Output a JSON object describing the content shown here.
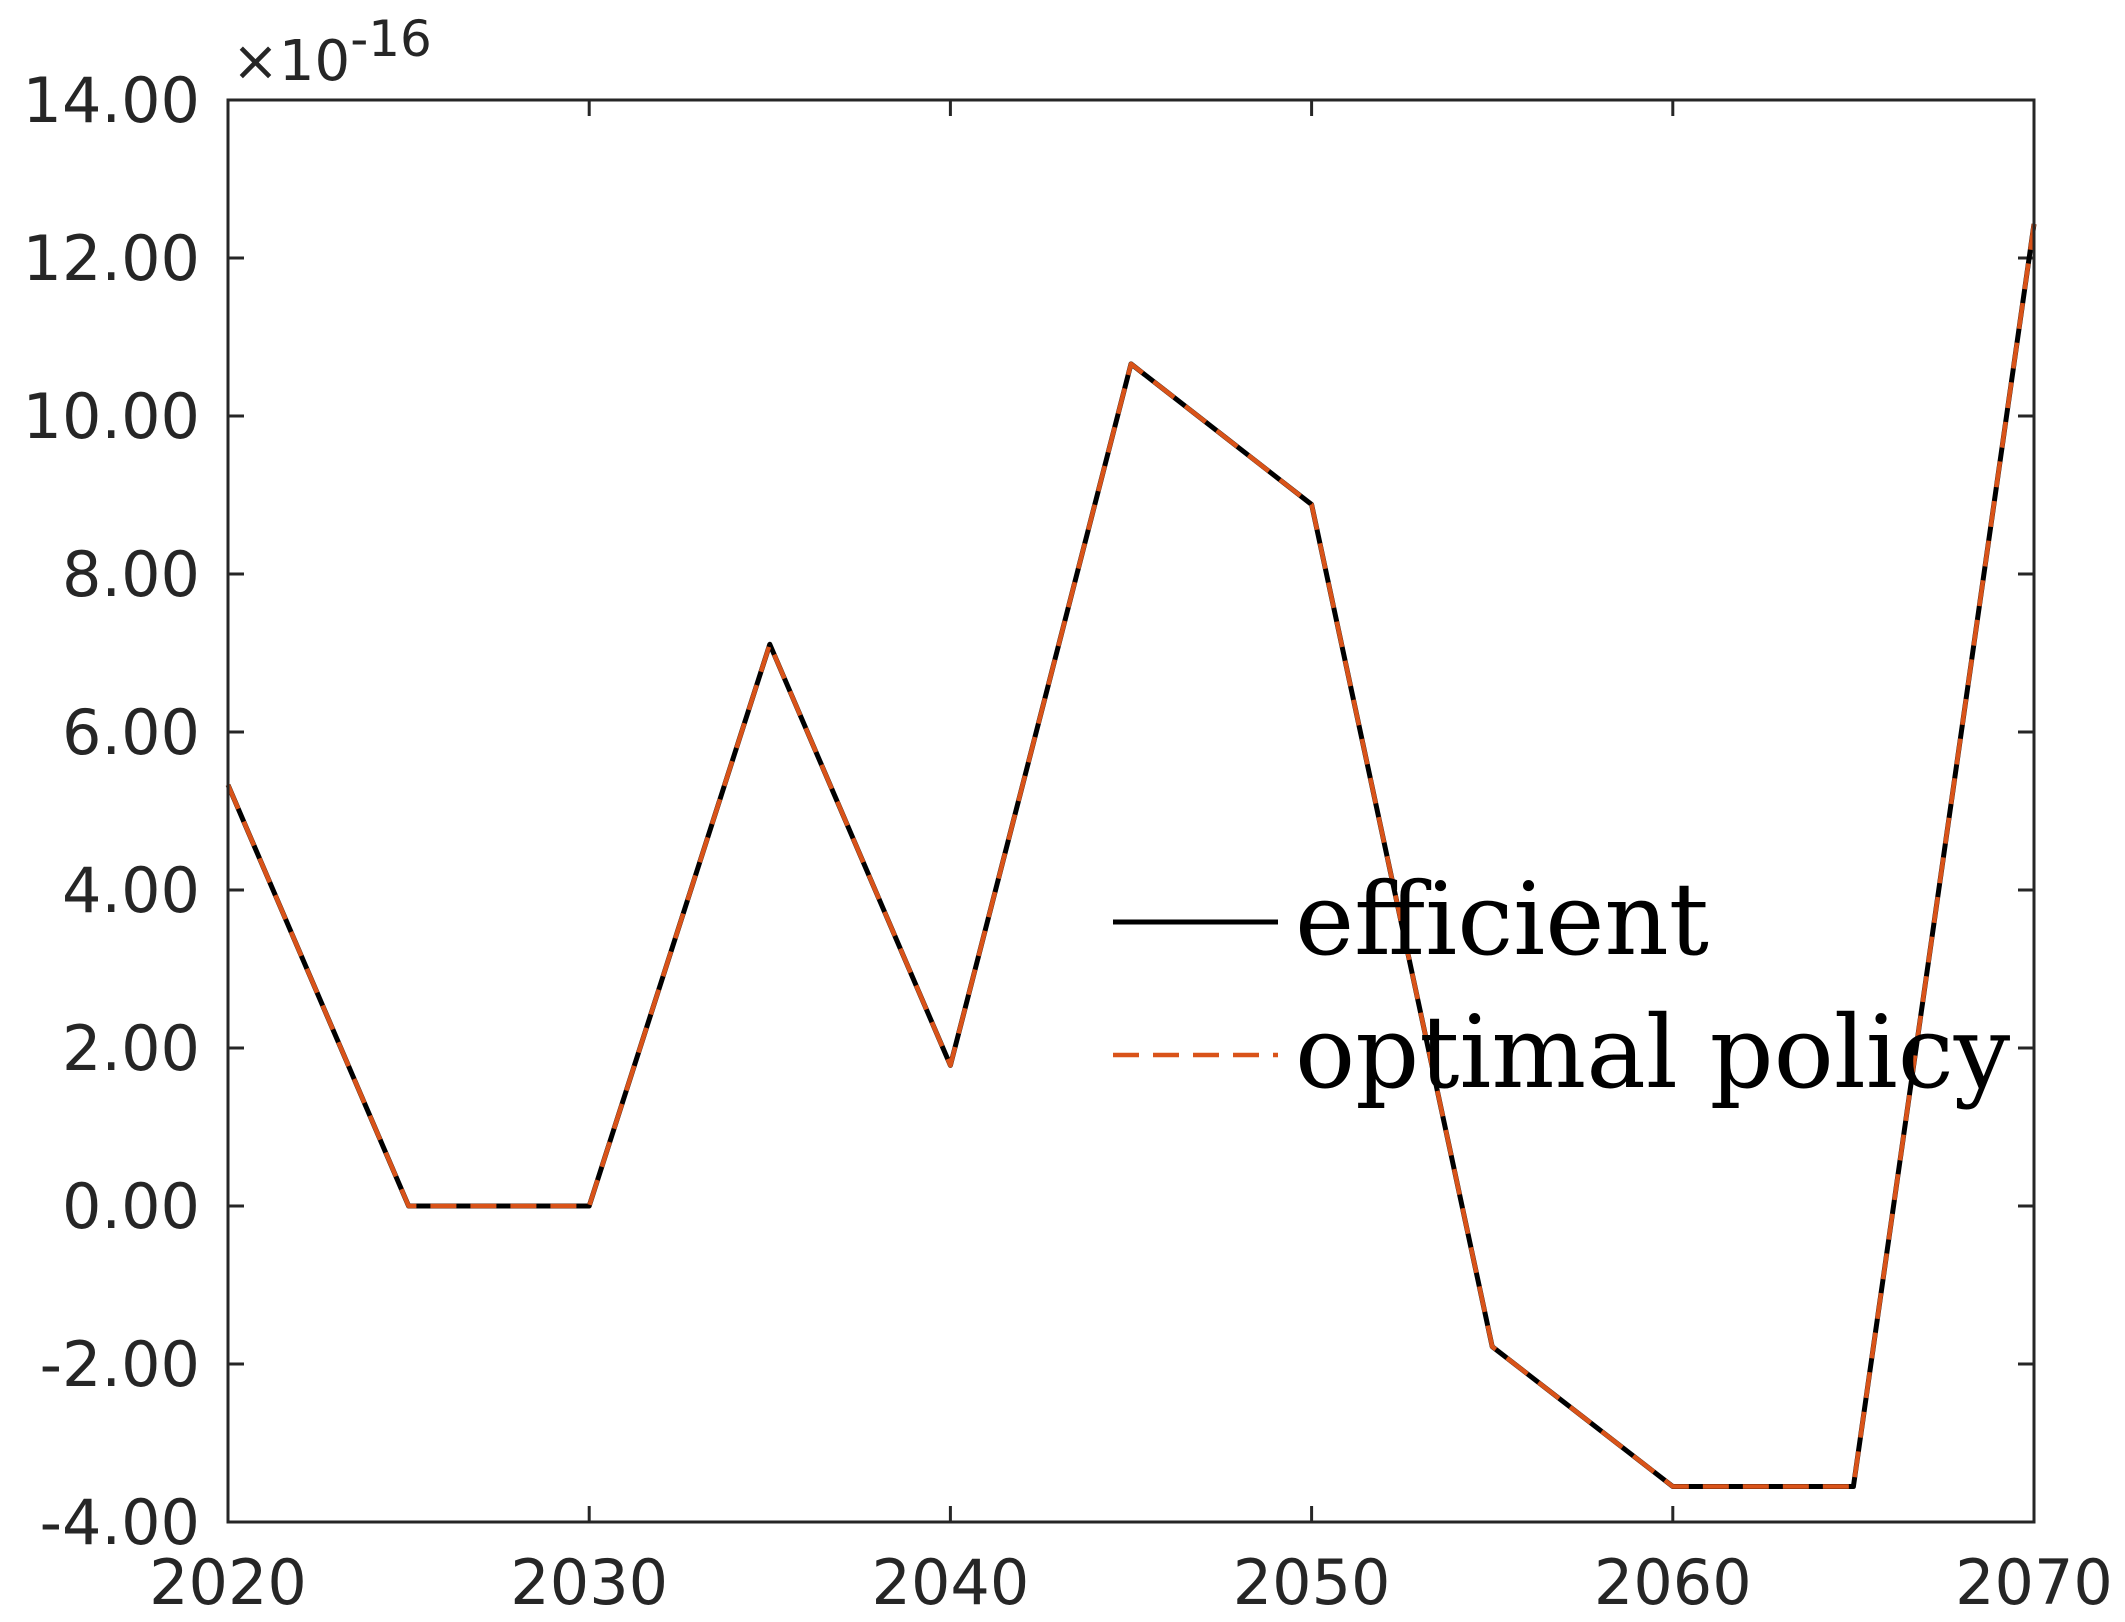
{
  "chart_data": {
    "type": "line",
    "x": [
      2020,
      2025,
      2030,
      2035,
      2040,
      2045,
      2050,
      2055,
      2060,
      2065,
      2070
    ],
    "series": [
      {
        "name": "efficient",
        "color": "#000000",
        "style": "solid",
        "values": [
          5.33,
          0.0,
          0.0,
          7.11,
          1.78,
          10.66,
          8.88,
          -1.78,
          -3.55,
          -3.55,
          12.43
        ]
      },
      {
        "name": "optimal policy",
        "color": "#D95319",
        "style": "dashed",
        "values": [
          5.33,
          0.0,
          0.0,
          7.11,
          1.78,
          10.66,
          8.88,
          -1.78,
          -3.55,
          -3.55,
          12.43
        ]
      }
    ],
    "xlim": [
      2020,
      2070
    ],
    "ylim": [
      -4,
      14
    ],
    "x_ticks": [
      "2020",
      "2030",
      "2040",
      "2050",
      "2060",
      "2070"
    ],
    "y_ticks": [
      "-4.00",
      "-2.00",
      "0.00",
      "2.00",
      "4.00",
      "6.00",
      "8.00",
      "10.00",
      "12.00",
      "14.00"
    ],
    "y_exponent": {
      "base": "×10",
      "power": "-16"
    },
    "legend_position": "center-right",
    "grid": false,
    "title": "",
    "xlabel": "",
    "ylabel": ""
  }
}
